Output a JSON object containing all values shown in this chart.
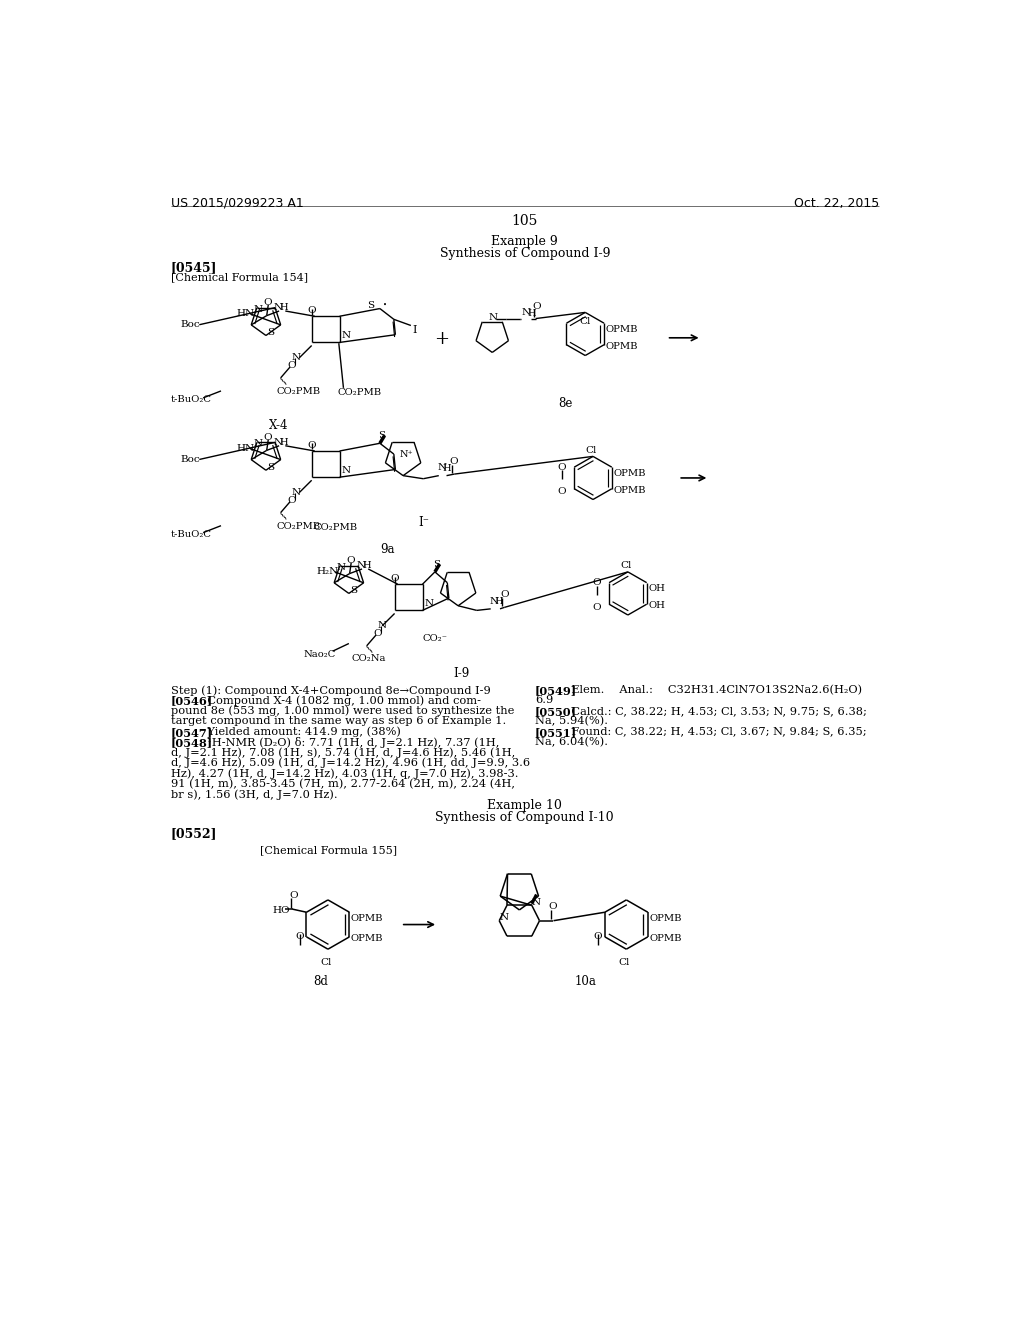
{
  "background_color": "#ffffff",
  "header_left": "US 2015/0299223 A1",
  "header_right": "Oct. 22, 2015",
  "page_number": "105",
  "example_title": "Example 9",
  "example_subtitle": "Synthesis of Compound I-9",
  "tag_0545": "[0545]",
  "chem_formula_154": "[Chemical Formula 154]",
  "tag_0552": "[0552]",
  "chem_formula_155": "[Chemical Formula 155]",
  "example10_title": "Example 10",
  "example10_subtitle": "Synthesis of Compound I-10",
  "left_col_lines": [
    {
      "text": "Step (1): Compound X-4+Compound 8e→Compound I-9",
      "bold_prefix": false
    },
    {
      "text": "[0546]",
      "bold_prefix": true,
      "rest": " Compound X-4 (1082 mg, 1.00 mmol) and com-"
    },
    {
      "text": "pound 8e (553 mg, 1.00 mmol) were used to synthesize the",
      "bold_prefix": false
    },
    {
      "text": "target compound in the same way as step 6 of Example 1.",
      "bold_prefix": false
    },
    {
      "text": "[0547]",
      "bold_prefix": true,
      "rest": " Yielded amount: 414.9 mg, (38%)"
    },
    {
      "text": "[0548]",
      "bold_prefix": true,
      "rest": " ¹H-NMR (D₂O) δ: 7.71 (1H, d, J=2.1 Hz), 7.37 (1H,"
    },
    {
      "text": "d, J=2.1 Hz), 7.08 (1H, s), 5.74 (1H, d, J=4.6 Hz), 5.46 (1H,",
      "bold_prefix": false
    },
    {
      "text": "d, J=4.6 Hz), 5.09 (1H, d, J=14.2 Hz), 4.96 (1H, dd, J=9.9, 3.6",
      "bold_prefix": false
    },
    {
      "text": "Hz), 4.27 (1H, d, J=14.2 Hz), 4.03 (1H, q, J=7.0 Hz), 3.98-3.",
      "bold_prefix": false
    },
    {
      "text": "91 (1H, m), 3.85-3.45 (7H, m), 2.77-2.64 (2H, m), 2.24 (4H,",
      "bold_prefix": false
    },
    {
      "text": "br s), 1.56 (3H, d, J=7.0 Hz).",
      "bold_prefix": false
    }
  ],
  "right_col_lines": [
    {
      "text": "[0549]",
      "bold_prefix": true,
      "rest": " Elem.  Anal.:  C32H31.4ClN7O13S2Na2.6(H₂O)"
    },
    {
      "text": "6.9",
      "bold_prefix": false
    },
    {
      "text": "[0550]",
      "bold_prefix": true,
      "rest": " Calcd.: C, 38.22; H, 4.53; Cl, 3.53; N, 9.75; S, 6.38;"
    },
    {
      "text": "Na, 5.94(%).",
      "bold_prefix": false
    },
    {
      "text": "[0551]",
      "bold_prefix": true,
      "rest": " Found: C, 38.22; H, 4.53; Cl, 3.67; N, 9.84; S, 6.35;"
    },
    {
      "text": "Na, 6.04(%).",
      "bold_prefix": false
    }
  ]
}
